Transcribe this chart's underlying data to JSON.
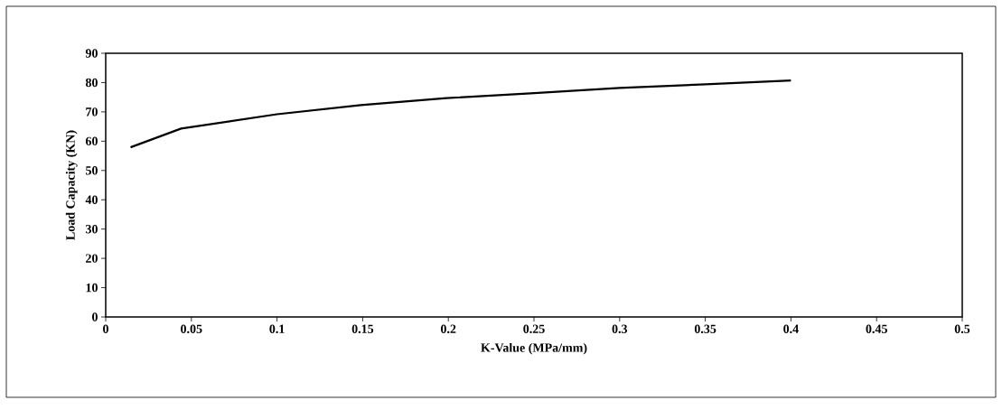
{
  "chart_data": {
    "type": "line",
    "xlabel": "K-Value (MPa/mm)",
    "ylabel": "Load Capacity (KN)",
    "x": [
      0.0145,
      0.044,
      0.1,
      0.149,
      0.199,
      0.248,
      0.3,
      0.35,
      0.4
    ],
    "series": [
      {
        "color": "#000000",
        "values": [
          57.9,
          64.3,
          69.2,
          72.3,
          74.7,
          76.3,
          78.2,
          79.4,
          80.7
        ]
      }
    ],
    "xlim": [
      0,
      0.5
    ],
    "ylim": [
      0,
      90
    ],
    "xticks": [
      0,
      0.05,
      0.1,
      0.15,
      0.2,
      0.25,
      0.3,
      0.35,
      0.4,
      0.45,
      0.5
    ],
    "yticks": [
      0,
      10,
      20,
      30,
      40,
      50,
      60,
      70,
      80,
      90
    ],
    "grid": false,
    "marker": "none",
    "line_style": "solid"
  }
}
